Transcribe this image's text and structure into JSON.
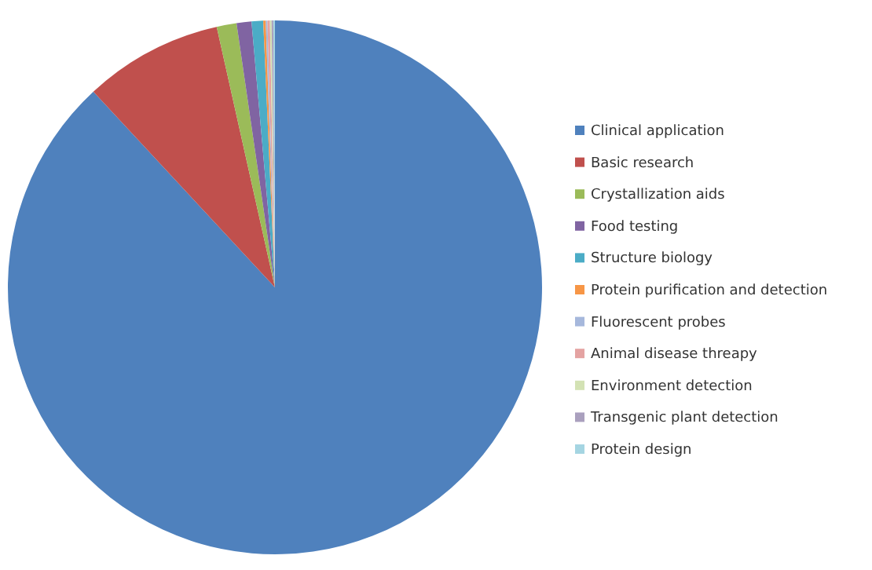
{
  "chart_data": {
    "type": "pie",
    "categories": [
      "Clinical application",
      "Basic research",
      "Crystallization aids",
      "Food testing",
      "Structure biology",
      "Protein purification and detection",
      "Fluorescent probes",
      "Animal disease threapy",
      "Environment detection",
      "Transgenic plant detection",
      "Protein design"
    ],
    "values": [
      88.1,
      8.4,
      1.2,
      0.9,
      0.7,
      0.15,
      0.1,
      0.15,
      0.1,
      0.1,
      0.1
    ],
    "colors": [
      "#4f81bd",
      "#c0504d",
      "#9bbb59",
      "#8064a2",
      "#4bacc6",
      "#f79646",
      "#a6b8dc",
      "#e4a3a2",
      "#d3e2b4",
      "#aaa0be",
      "#a5d5e2"
    ],
    "legend": "right"
  }
}
